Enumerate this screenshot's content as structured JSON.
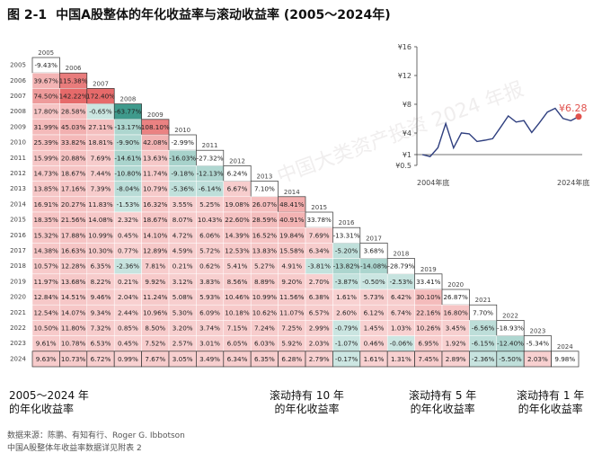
{
  "title": {
    "figure_no": "图 2-1",
    "text": "中国A股整体的年化收益率与滚动收益率 (2005～2024年)"
  },
  "watermark": "中国大类资产投资 2024 年报",
  "colors": {
    "positive_strong": "#e66a6a",
    "positive_light": "#fbe4e4",
    "negative_strong": "#3f9a8c",
    "negative_light": "#dcefec",
    "accent_line": "#e0514d",
    "mini_line": "#2f3f7f"
  },
  "footer": {
    "annual_line1": "2005～2024 年",
    "annual_line2": "的年化收益率",
    "r10_line1": "滚动持有 10 年",
    "r10_line2": "的年化收益率",
    "r5_line1": "滚动持有 5 年",
    "r5_line2": "的年化收益率",
    "r1_line1": "滚动持有 1 年",
    "r1_line2": "的年化收益率"
  },
  "source": {
    "line1": "数据来源：陈鹏、有知有行、Roger G. Ibbotson",
    "line2": "中国A股整体年收益率数据详见附表 2"
  },
  "chart_data": [
    {
      "type": "table",
      "description_key": "triangular annualized return matrix",
      "start_years": [
        "2005",
        "2006",
        "2007",
        "2008",
        "2009",
        "2010",
        "2011",
        "2012",
        "2013",
        "2014",
        "2015",
        "2016",
        "2017",
        "2018",
        "2019",
        "2020",
        "2021",
        "2022",
        "2023",
        "2024"
      ],
      "end_years": [
        "2005",
        "2006",
        "2007",
        "2008",
        "2009",
        "2010",
        "2011",
        "2012",
        "2013",
        "2014",
        "2015",
        "2016",
        "2017",
        "2018",
        "2019",
        "2020",
        "2021",
        "2022",
        "2023",
        "2024"
      ],
      "rows": [
        [
          "-9.43%"
        ],
        [
          "39.67%",
          "115.38%"
        ],
        [
          "74.50%",
          "142.22%",
          "172.40%"
        ],
        [
          "17.80%",
          "28.58%",
          "-0.65%",
          "-63.77%"
        ],
        [
          "31.99%",
          "45.03%",
          "27.11%",
          "-13.17%",
          "108.10%"
        ],
        [
          "25.39%",
          "33.82%",
          "18.81%",
          "-9.90%",
          "42.08%",
          "-2.99%"
        ],
        [
          "15.99%",
          "20.88%",
          "7.69%",
          "-14.61%",
          "13.63%",
          "-16.03%",
          "-27.32%"
        ],
        [
          "14.73%",
          "18.67%",
          "7.44%",
          "-10.80%",
          "11.74%",
          "-9.18%",
          "-12.13%",
          "6.24%"
        ],
        [
          "13.85%",
          "17.16%",
          "7.39%",
          "-8.04%",
          "10.79%",
          "-5.36%",
          "-6.14%",
          "6.67%",
          "7.10%"
        ],
        [
          "16.91%",
          "20.27%",
          "11.83%",
          "-1.53%",
          "16.32%",
          "3.55%",
          "5.25%",
          "19.08%",
          "26.07%",
          "48.41%"
        ],
        [
          "18.35%",
          "21.56%",
          "14.08%",
          "2.32%",
          "18.67%",
          "8.07%",
          "10.43%",
          "22.60%",
          "28.59%",
          "40.91%",
          "33.78%"
        ],
        [
          "15.32%",
          "17.88%",
          "10.99%",
          "0.45%",
          "14.10%",
          "4.72%",
          "6.06%",
          "14.39%",
          "16.52%",
          "19.84%",
          "7.69%",
          "-13.31%"
        ],
        [
          "14.38%",
          "16.63%",
          "10.30%",
          "0.77%",
          "12.89%",
          "4.59%",
          "5.72%",
          "12.53%",
          "13.83%",
          "15.58%",
          "6.34%",
          "-5.20%",
          "3.68%"
        ],
        [
          "10.57%",
          "12.28%",
          "6.35%",
          "-2.36%",
          "7.81%",
          "0.21%",
          "0.62%",
          "5.41%",
          "5.27%",
          "4.91%",
          "-3.81%",
          "-13.82%",
          "-14.08%",
          "-28.79%"
        ],
        [
          "11.97%",
          "13.68%",
          "8.22%",
          "0.21%",
          "9.92%",
          "3.12%",
          "3.83%",
          "8.56%",
          "8.89%",
          "9.20%",
          "2.70%",
          "-3.87%",
          "-0.50%",
          "-2.53%",
          "33.41%"
        ],
        [
          "12.84%",
          "14.51%",
          "9.46%",
          "2.04%",
          "11.24%",
          "5.08%",
          "5.93%",
          "10.46%",
          "10.99%",
          "11.56%",
          "6.38%",
          "1.61%",
          "5.73%",
          "6.42%",
          "30.10%",
          "26.87%"
        ],
        [
          "12.54%",
          "14.07%",
          "9.34%",
          "2.44%",
          "10.96%",
          "5.30%",
          "6.09%",
          "10.18%",
          "10.62%",
          "11.07%",
          "6.57%",
          "2.60%",
          "6.12%",
          "6.74%",
          "22.16%",
          "16.80%",
          "7.70%"
        ],
        [
          "10.50%",
          "11.80%",
          "7.32%",
          "0.85%",
          "8.50%",
          "3.20%",
          "3.74%",
          "7.15%",
          "7.24%",
          "7.25%",
          "2.99%",
          "-0.79%",
          "1.45%",
          "1.03%",
          "10.26%",
          "3.45%",
          "-6.56%",
          "-18.93%"
        ],
        [
          "9.61%",
          "10.78%",
          "6.53%",
          "0.45%",
          "7.52%",
          "2.57%",
          "3.01%",
          "6.05%",
          "6.03%",
          "5.92%",
          "2.03%",
          "-1.07%",
          "0.46%",
          "-0.06%",
          "6.95%",
          "1.92%",
          "-6.15%",
          "-12.40%",
          "-5.34%"
        ],
        [
          "9.63%",
          "10.73%",
          "6.72%",
          "0.99%",
          "7.67%",
          "3.05%",
          "3.49%",
          "6.34%",
          "6.35%",
          "6.28%",
          "2.79%",
          "-0.17%",
          "1.61%",
          "1.31%",
          "7.45%",
          "2.89%",
          "-2.36%",
          "-5.50%",
          "2.03%",
          "9.98%"
        ]
      ]
    },
    {
      "type": "line",
      "x_labels": [
        "2004年底",
        "2024年底"
      ],
      "y_ticks": [
        "¥0.5",
        "¥1",
        "¥4",
        "¥8",
        "¥12",
        "¥16"
      ],
      "ylim": [
        0.5,
        16
      ],
      "last_label": "¥6.28",
      "series": [
        {
          "x": [
            "2004",
            "2005",
            "2006",
            "2007",
            "2008",
            "2009",
            "2010",
            "2011",
            "2012",
            "2013",
            "2014",
            "2015",
            "2016",
            "2017",
            "2018",
            "2019",
            "2020",
            "2021",
            "2022",
            "2023",
            "2024"
          ],
          "values": [
            1.0,
            0.91,
            1.95,
            5.32,
            1.93,
            4.01,
            3.89,
            2.83,
            3.0,
            3.21,
            4.77,
            6.38,
            5.53,
            5.73,
            4.08,
            5.45,
            6.91,
            7.44,
            6.03,
            5.71,
            6.28
          ]
        }
      ]
    }
  ]
}
